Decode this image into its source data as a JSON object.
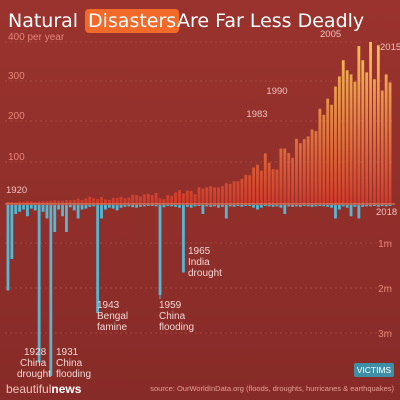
{
  "title": {
    "before": "Natural ",
    "highlight": "Disasters",
    "after": " Are Far Less Deadly"
  },
  "colors": {
    "background": "#8e2e2a",
    "disasters_bar_top": "#f0b24a",
    "disasters_bar_bottom": "#d8412a",
    "victims_bar": "#56b7d3",
    "highlight_box": "#f26a2a",
    "grid": "#b0504a"
  },
  "axis_left_labels": [
    "400 per year",
    "300",
    "200",
    "100"
  ],
  "axis_right_labels": [
    "1m",
    "2m",
    "3m"
  ],
  "year_labels": [
    "1920",
    "1983",
    "1990",
    "2005",
    "2015",
    "2018"
  ],
  "annotations": [
    {
      "year": "1928",
      "lines": [
        "China",
        "drought"
      ]
    },
    {
      "year": "1931",
      "lines": [
        "China",
        "flooding"
      ]
    },
    {
      "year": "1943",
      "lines": [
        "Bengal",
        "famine"
      ]
    },
    {
      "year": "1959",
      "lines": [
        "China",
        "flooding"
      ]
    },
    {
      "year": "1965",
      "lines": [
        "India",
        "drought"
      ]
    }
  ],
  "legend_badge": "VICTIMS",
  "branding": {
    "part1": "beautiful",
    "part2": "news"
  },
  "source": "source: OurWorldInData.org (floods, droughts, hurricanes & earthquakes)",
  "chart_data": {
    "type": "bar",
    "x": [
      1920,
      1921,
      1922,
      1923,
      1924,
      1925,
      1926,
      1927,
      1928,
      1929,
      1930,
      1931,
      1932,
      1933,
      1934,
      1935,
      1936,
      1937,
      1938,
      1939,
      1940,
      1941,
      1942,
      1943,
      1944,
      1945,
      1946,
      1947,
      1948,
      1949,
      1950,
      1951,
      1952,
      1953,
      1954,
      1955,
      1956,
      1957,
      1958,
      1959,
      1960,
      1961,
      1962,
      1963,
      1964,
      1965,
      1966,
      1967,
      1968,
      1969,
      1970,
      1971,
      1972,
      1973,
      1974,
      1975,
      1976,
      1977,
      1978,
      1979,
      1980,
      1981,
      1982,
      1983,
      1984,
      1985,
      1986,
      1987,
      1988,
      1989,
      1990,
      1991,
      1992,
      1993,
      1994,
      1995,
      1996,
      1997,
      1998,
      1999,
      2000,
      2001,
      2002,
      2003,
      2004,
      2005,
      2006,
      2007,
      2008,
      2009,
      2010,
      2011,
      2012,
      2013,
      2014,
      2015,
      2016,
      2017,
      2018
    ],
    "series": [
      {
        "name": "",
        "values": [
          5,
          5,
          4,
          6,
          5,
          7,
          6,
          5,
          6,
          7,
          7,
          8,
          9,
          8,
          8,
          10,
          9,
          10,
          13,
          10,
          14,
          18,
          14,
          12,
          17,
          11,
          10,
          15,
          15,
          18,
          14,
          16,
          23,
          22,
          19,
          24,
          25,
          22,
          27,
          14,
          12,
          22,
          20,
          28,
          34,
          26,
          33,
          32,
          24,
          41,
          38,
          41,
          44,
          41,
          41,
          44,
          51,
          50,
          56,
          56,
          62,
          72,
          71,
          90,
          97,
          82,
          125,
          102,
          86,
          85,
          137,
          137,
          126,
          114,
          161,
          150,
          160,
          167,
          184,
          180,
          235,
          220,
          260,
          245,
          290,
          315,
          355,
          330,
          320,
          302,
          390,
          355,
          325,
          400,
          308,
          392,
          280,
          320,
          300
        ]
      },
      {
        "name": "VICTIMS",
        "values": [
          1900000,
          1200000,
          200000,
          150000,
          100000,
          250000,
          80000,
          120000,
          3500000,
          150000,
          300000,
          3800000,
          600000,
          100000,
          250000,
          600000,
          50000,
          120000,
          300000,
          100000,
          80000,
          40000,
          30000,
          2400000,
          300000,
          100000,
          60000,
          80000,
          120000,
          60000,
          40000,
          30000,
          50000,
          60000,
          40000,
          30000,
          20000,
          20000,
          30000,
          2000000,
          50000,
          20000,
          30000,
          40000,
          60000,
          1500000,
          40000,
          60000,
          30000,
          20000,
          200000,
          30000,
          40000,
          30000,
          60000,
          40000,
          300000,
          30000,
          40000,
          20000,
          40000,
          20000,
          20000,
          60000,
          100000,
          60000,
          20000,
          30000,
          40000,
          30000,
          60000,
          200000,
          30000,
          40000,
          30000,
          40000,
          20000,
          30000,
          40000,
          30000,
          20000,
          30000,
          40000,
          60000,
          300000,
          100000,
          30000,
          60000,
          250000,
          40000,
          300000,
          40000,
          30000,
          30000,
          20000,
          40000,
          20000,
          30000,
          20000
        ]
      }
    ],
    "ylabel": "per year",
    "ylim": [
      0,
      400
    ],
    "y2_labels": [
      "1m",
      "2m",
      "3m"
    ],
    "y2lim": [
      0,
      4000000
    ],
    "grid": true
  }
}
